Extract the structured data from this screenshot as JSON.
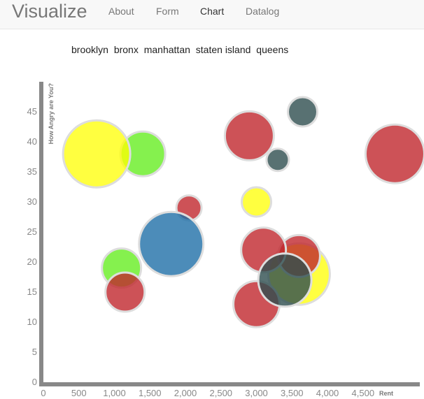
{
  "nav": {
    "brand": "Visualize",
    "links": [
      "About",
      "Form",
      "Chart",
      "Datalog"
    ],
    "active": "Chart"
  },
  "legend": [
    "brooklyn",
    "bronx",
    "manhattan",
    "staten island",
    "queens"
  ],
  "colors": {
    "brooklyn": "#c0272d",
    "bronx": "#66ee22",
    "manhattan": "#2e4d4f",
    "staten island": "#1f6fa8",
    "queens": "#ffff00",
    "axis": "#888888"
  },
  "chart_data": {
    "type": "scatter",
    "xlabel": "Rent",
    "ylabel": "How Angry are You?",
    "xlim": [
      0,
      5300
    ],
    "ylim": [
      0,
      50
    ],
    "x_ticks": [
      0,
      500,
      1000,
      1500,
      2000,
      2500,
      3000,
      3500,
      4000,
      4500
    ],
    "y_ticks": [
      0,
      5,
      10,
      15,
      20,
      25,
      30,
      35,
      40,
      45
    ],
    "grid": false,
    "series": [
      {
        "name": "brooklyn",
        "points": [
          {
            "x": 2050,
            "y": 29,
            "r": 18
          },
          {
            "x": 2900,
            "y": 41,
            "r": 35
          },
          {
            "x": 4950,
            "y": 38,
            "r": 42
          },
          {
            "x": 3100,
            "y": 22,
            "r": 32
          },
          {
            "x": 3600,
            "y": 21,
            "r": 30
          },
          {
            "x": 3000,
            "y": 13,
            "r": 33
          },
          {
            "x": 1150,
            "y": 15,
            "r": 28
          }
        ]
      },
      {
        "name": "bronx",
        "points": [
          {
            "x": 1400,
            "y": 38,
            "r": 32
          },
          {
            "x": 1100,
            "y": 19,
            "r": 28
          }
        ]
      },
      {
        "name": "manhattan",
        "points": [
          {
            "x": 3650,
            "y": 45,
            "r": 21
          },
          {
            "x": 3300,
            "y": 37,
            "r": 16
          },
          {
            "x": 3400,
            "y": 17,
            "r": 38
          }
        ]
      },
      {
        "name": "staten island",
        "points": [
          {
            "x": 1800,
            "y": 23,
            "r": 46
          }
        ]
      },
      {
        "name": "queens",
        "points": [
          {
            "x": 750,
            "y": 38,
            "r": 48
          },
          {
            "x": 3000,
            "y": 30,
            "r": 21
          },
          {
            "x": 3600,
            "y": 18,
            "r": 44
          }
        ]
      }
    ],
    "draw_order": [
      [
        "bronx",
        0
      ],
      [
        "queens",
        0
      ],
      [
        "brooklyn",
        1
      ],
      [
        "manhattan",
        0
      ],
      [
        "manhattan",
        1
      ],
      [
        "brooklyn",
        2
      ],
      [
        "queens",
        1
      ],
      [
        "brooklyn",
        0
      ],
      [
        "staten island",
        0
      ],
      [
        "bronx",
        1
      ],
      [
        "brooklyn",
        6
      ],
      [
        "queens",
        2
      ],
      [
        "brooklyn",
        4
      ],
      [
        "brooklyn",
        3
      ],
      [
        "brooklyn",
        5
      ],
      [
        "manhattan",
        2
      ]
    ]
  }
}
